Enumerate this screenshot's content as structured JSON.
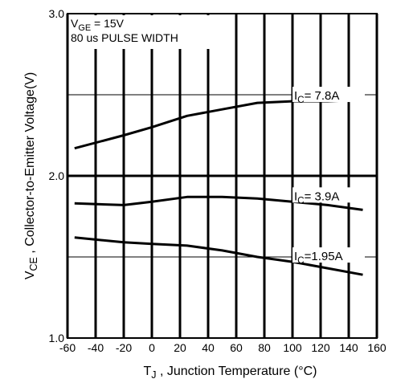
{
  "chart_data": {
    "type": "line",
    "title": "",
    "xlabel": {
      "main": "T",
      "sub": "J",
      "rest": " , Junction Temperature (°C)"
    },
    "ylabel": {
      "main": "V",
      "sub": "CE",
      "rest": " , Collector-to-Emitter Voltage(V)"
    },
    "xlim": [
      -60,
      160
    ],
    "ylim": [
      1.0,
      3.0
    ],
    "x_ticks": [
      -60,
      -40,
      -20,
      0,
      20,
      40,
      60,
      80,
      100,
      120,
      140,
      160
    ],
    "x_tick_labels": [
      "-60",
      "-40",
      "-20",
      "0",
      "20",
      "40",
      "60",
      "80",
      "100",
      "120",
      "140",
      "160"
    ],
    "y_ticks": [
      1.0,
      2.0,
      3.0
    ],
    "y_tick_labels": [
      "1.0",
      "2.0",
      "3.0"
    ],
    "y_minor_gridlines": [
      1.5,
      2.5
    ],
    "grid": true,
    "conditions": [
      {
        "main": "V",
        "sub": "GE",
        "rest": " = 15V"
      },
      {
        "main": "80 us PULSE WIDTH",
        "sub": "",
        "rest": ""
      }
    ],
    "series": [
      {
        "label": {
          "main": "I",
          "sub": "C",
          "rest": "= 7.8A"
        },
        "x": [
          -55,
          -20,
          0,
          25,
          50,
          75,
          100,
          125,
          150
        ],
        "y": [
          2.17,
          2.25,
          2.3,
          2.37,
          2.41,
          2.45,
          2.46,
          2.46,
          2.47
        ]
      },
      {
        "label": {
          "main": "I",
          "sub": "C",
          "rest": "=  3.9A"
        },
        "x": [
          -55,
          -20,
          0,
          25,
          50,
          75,
          100,
          125,
          150
        ],
        "y": [
          1.83,
          1.82,
          1.84,
          1.87,
          1.87,
          1.86,
          1.84,
          1.82,
          1.79
        ]
      },
      {
        "label": {
          "main": "I",
          "sub": "C",
          "rest": "=1.95A"
        },
        "x": [
          -55,
          -20,
          0,
          25,
          50,
          75,
          100,
          125,
          150
        ],
        "y": [
          1.62,
          1.59,
          1.58,
          1.57,
          1.54,
          1.5,
          1.47,
          1.43,
          1.39
        ]
      }
    ]
  }
}
